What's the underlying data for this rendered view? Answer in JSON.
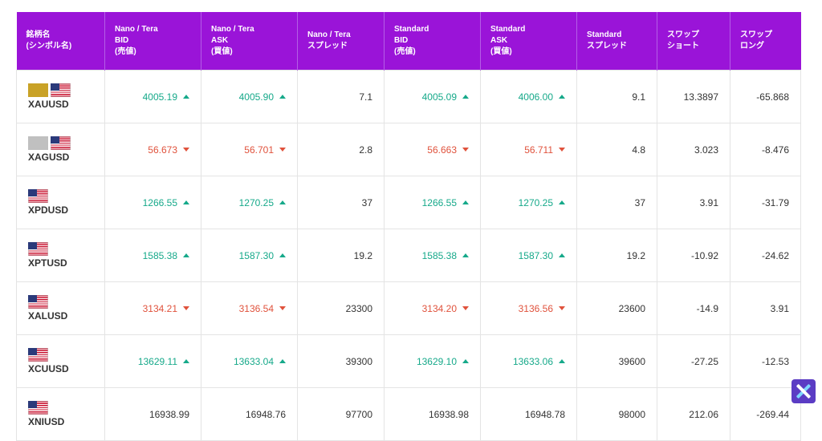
{
  "table": {
    "headers": [
      {
        "lines": [
          "銘柄名",
          "(シンボル名)"
        ]
      },
      {
        "lines": [
          "Nano / Tera",
          "BID",
          "(売値)"
        ]
      },
      {
        "lines": [
          "Nano / Tera",
          "ASK",
          "(買値)"
        ]
      },
      {
        "lines": [
          "Nano / Tera",
          "スプレッド"
        ]
      },
      {
        "lines": [
          "Standard",
          "BID",
          "(売値)"
        ]
      },
      {
        "lines": [
          "Standard",
          "ASK",
          "(買値)"
        ]
      },
      {
        "lines": [
          "Standard",
          "スプレッド"
        ]
      },
      {
        "lines": [
          "スワップ",
          "ショート"
        ]
      },
      {
        "lines": [
          "スワップ",
          "ロング"
        ]
      }
    ],
    "rows": [
      {
        "symbol": "XAUUSD",
        "metal_color": "#c9a227",
        "direction": "up",
        "nano_bid": "4005.19",
        "nano_ask": "4005.90",
        "nano_spread": "7.1",
        "std_bid": "4005.09",
        "std_ask": "4006.00",
        "std_spread": "9.1",
        "swap_short": "13.3897",
        "swap_long": "-65.868"
      },
      {
        "symbol": "XAGUSD",
        "metal_color": "#c0c0c0",
        "direction": "down",
        "nano_bid": "56.673",
        "nano_ask": "56.701",
        "nano_spread": "2.8",
        "std_bid": "56.663",
        "std_ask": "56.711",
        "std_spread": "4.8",
        "swap_short": "3.023",
        "swap_long": "-8.476"
      },
      {
        "symbol": "XPDUSD",
        "metal_color": "",
        "direction": "up",
        "nano_bid": "1266.55",
        "nano_ask": "1270.25",
        "nano_spread": "37",
        "std_bid": "1266.55",
        "std_ask": "1270.25",
        "std_spread": "37",
        "swap_short": "3.91",
        "swap_long": "-31.79"
      },
      {
        "symbol": "XPTUSD",
        "metal_color": "",
        "direction": "up",
        "nano_bid": "1585.38",
        "nano_ask": "1587.30",
        "nano_spread": "19.2",
        "std_bid": "1585.38",
        "std_ask": "1587.30",
        "std_spread": "19.2",
        "swap_short": "-10.92",
        "swap_long": "-24.62"
      },
      {
        "symbol": "XALUSD",
        "metal_color": "",
        "direction": "down",
        "nano_bid": "3134.21",
        "nano_ask": "3136.54",
        "nano_spread": "23300",
        "std_bid": "3134.20",
        "std_ask": "3136.56",
        "std_spread": "23600",
        "swap_short": "-14.9",
        "swap_long": "3.91"
      },
      {
        "symbol": "XCUUSD",
        "metal_color": "",
        "direction": "up",
        "nano_bid": "13629.11",
        "nano_ask": "13633.04",
        "nano_spread": "39300",
        "std_bid": "13629.10",
        "std_ask": "13633.06",
        "std_spread": "39600",
        "swap_short": "-27.25",
        "swap_long": "-12.53"
      },
      {
        "symbol": "XNIUSD",
        "metal_color": "",
        "direction": "none",
        "nano_bid": "16938.99",
        "nano_ask": "16948.76",
        "nano_spread": "97700",
        "std_bid": "16938.98",
        "std_ask": "16948.78",
        "std_spread": "98000",
        "swap_short": "212.06",
        "swap_long": "-269.44"
      }
    ]
  },
  "colors": {
    "header_bg": "#9a14d8",
    "up": "#16a98a",
    "down": "#e0523c",
    "widget_bg": "#5b3cc4"
  },
  "widget": {
    "icon": "x-logo-icon"
  }
}
